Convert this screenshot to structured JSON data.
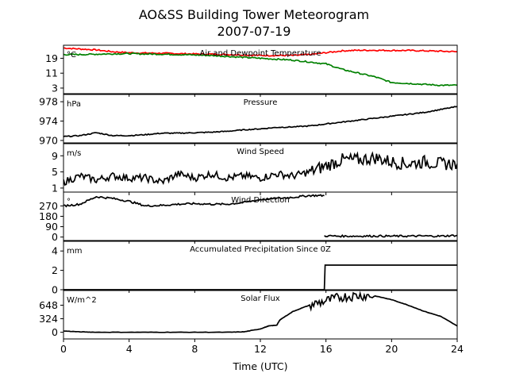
{
  "figure": {
    "title_line1": "AO&SS Building Tower Meteorogram",
    "title_line2": "2007-07-19"
  },
  "chart_data": {
    "type": "line",
    "xlabel": "Time (UTC)",
    "xlim": [
      0,
      24
    ],
    "xticks": [
      0,
      4,
      8,
      12,
      16,
      20,
      24
    ],
    "panels": [
      {
        "title": "Air and Dewpoint Temperature",
        "unit": "°C",
        "ylim": [
          0,
          26
        ],
        "yticks": [
          3,
          11,
          19
        ],
        "series": [
          {
            "color": "#ff0000",
            "x": [
              0,
              1,
              2,
              3,
              4,
              5,
              6,
              7,
              8,
              9,
              10,
              11,
              12,
              13,
              14,
              15,
              16,
              17,
              18,
              19,
              20,
              21,
              22,
              23,
              24
            ],
            "y": [
              24.5,
              24,
              23.5,
              22.5,
              22,
              21.8,
              21.7,
              21.5,
              21.3,
              21.2,
              21,
              20.8,
              20.5,
              20.5,
              20.5,
              21,
              22,
              23,
              23.3,
              23.3,
              23.2,
              23.2,
              23,
              22.8,
              22.5
            ]
          },
          {
            "color": "#008000",
            "x": [
              0,
              1,
              2,
              3,
              4,
              5,
              6,
              7,
              8,
              9,
              10,
              11,
              12,
              13,
              14,
              15,
              16,
              17,
              18,
              19,
              20,
              21,
              22,
              23,
              24
            ],
            "y": [
              21,
              21,
              21.2,
              21.4,
              21.5,
              21.3,
              21.2,
              21,
              20.8,
              20.5,
              20,
              19.5,
              19,
              18.5,
              18,
              17,
              16,
              13,
              11,
              9,
              6,
              5.5,
              5,
              4.5,
              4.5
            ]
          }
        ]
      },
      {
        "title": "Pressure",
        "unit": "hPa",
        "ylim": [
          969.5,
          979.5
        ],
        "yticks": [
          970,
          974,
          978
        ],
        "series": [
          {
            "color": "#000000",
            "x": [
              0,
              1,
              2,
              3,
              4,
              5,
              6,
              7,
              8,
              9,
              10,
              11,
              12,
              13,
              14,
              15,
              16,
              17,
              18,
              19,
              20,
              21,
              22,
              23,
              24
            ],
            "y": [
              970.8,
              971,
              971.6,
              971,
              971,
              971.2,
              971.5,
              971.5,
              971.6,
              971.7,
              971.9,
              972.2,
              972.4,
              972.7,
              972.8,
              973,
              973.4,
              973.8,
              974.2,
              974.6,
              975,
              975.4,
              975.8,
              976.4,
              977
            ]
          }
        ]
      },
      {
        "title": "Wind Speed",
        "unit": "m/s",
        "ylim": [
          0,
          12
        ],
        "yticks": [
          1,
          5,
          9
        ],
        "series": [
          {
            "color": "#000000",
            "x": [
              0,
              1,
              2,
              3,
              4,
              5,
              6,
              7,
              8,
              9,
              10,
              11,
              12,
              13,
              14,
              15,
              16,
              17,
              18,
              19,
              20,
              21,
              22,
              23,
              24
            ],
            "y": [
              2.5,
              4,
              3,
              4,
              3.5,
              3.5,
              2.5,
              4.5,
              3.5,
              4.5,
              3.5,
              4,
              3.5,
              4.5,
              4,
              5,
              6.5,
              8,
              8,
              8.5,
              7.5,
              7,
              7.5,
              7,
              7
            ]
          }
        ]
      },
      {
        "title": "Wind Direction",
        "unit": "°",
        "ylim": [
          -30,
          390
        ],
        "yticks": [
          0,
          90,
          180,
          270
        ],
        "series": [
          {
            "color": "#000000",
            "x": [
              0,
              1,
              2,
              3,
              4,
              5,
              6,
              7,
              8,
              9,
              10,
              11,
              12,
              13,
              14,
              15,
              15.9
            ],
            "y": [
              270,
              285,
              350,
              335,
              310,
              270,
              275,
              285,
              290,
              285,
              285,
              300,
              325,
              335,
              345,
              360,
              360
            ]
          },
          {
            "color": "#000000",
            "x": [
              15.9,
              17,
              18,
              19,
              20,
              21,
              22,
              23,
              24
            ],
            "y": [
              10,
              8,
              8,
              9,
              8,
              8,
              9,
              8,
              15
            ]
          }
        ]
      },
      {
        "title": "Accumulated Precipitation Since 0Z",
        "unit": "mm",
        "ylim": [
          0,
          5
        ],
        "yticks": [
          0,
          2,
          4
        ],
        "series": [
          {
            "color": "#000000",
            "x": [
              0,
              15.9,
              15.95,
              24
            ],
            "y": [
              0,
              0,
              2.54,
              2.54
            ]
          }
        ]
      },
      {
        "title": "Solar Flux",
        "unit": "W/m^2",
        "ylim": [
          -160,
          1000
        ],
        "yticks": [
          0,
          324,
          648
        ],
        "series": [
          {
            "color": "#000000",
            "x": [
              0,
              1,
              2,
              4,
              6,
              8,
              10,
              11,
              12,
              12.5,
              13,
              13.2,
              14,
              15,
              16,
              17,
              18,
              19,
              20,
              21,
              22,
              23,
              24
            ],
            "y": [
              30,
              10,
              0,
              0,
              0,
              0,
              0,
              10,
              80,
              150,
              170,
              300,
              500,
              650,
              750,
              850,
              880,
              870,
              780,
              650,
              500,
              380,
              150
            ]
          }
        ]
      }
    ]
  }
}
